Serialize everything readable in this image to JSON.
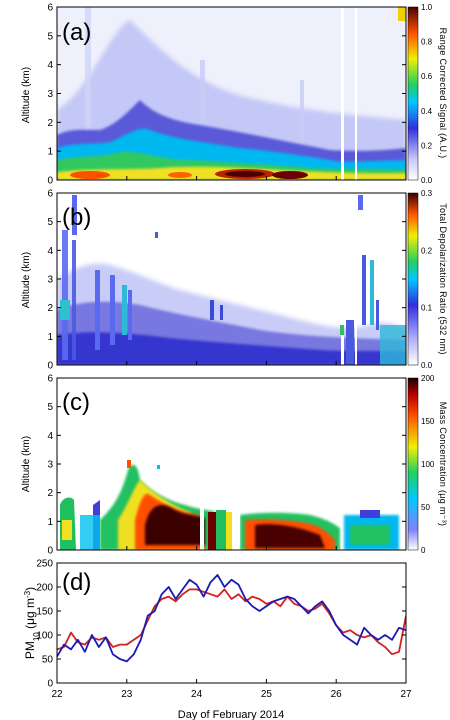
{
  "chart_data": [
    {
      "panel": "(a)",
      "type": "heatmap",
      "ylabel": "Altitude (km)",
      "ylim": [
        0,
        6
      ],
      "yticks": [
        "0",
        "1",
        "2",
        "3",
        "4",
        "5",
        "6"
      ],
      "colorbar": {
        "label": "Range Corrected Signal (A.U.)",
        "ticks": [
          "0.0",
          "0.2",
          "0.4",
          "0.6",
          "0.8",
          "1.0"
        ],
        "range": [
          0,
          1
        ]
      }
    },
    {
      "panel": "(b)",
      "type": "heatmap",
      "ylabel": "Altitude (km)",
      "ylim": [
        0,
        6
      ],
      "yticks": [
        "0",
        "1",
        "2",
        "3",
        "4",
        "5",
        "6"
      ],
      "colorbar": {
        "label": "Total Depolarization Ratio (532 nm)",
        "ticks": [
          "0.0",
          "0.1",
          "0.2",
          "0.3"
        ],
        "range": [
          0,
          0.3
        ]
      }
    },
    {
      "panel": "(c)",
      "type": "heatmap",
      "ylabel": "Altitude (km)",
      "ylim": [
        0,
        6
      ],
      "yticks": [
        "0",
        "1",
        "2",
        "3",
        "4",
        "5",
        "6"
      ],
      "colorbar": {
        "label": "Mass Concentration (μg m⁻³)",
        "ticks": [
          "0",
          "50",
          "100",
          "150",
          "200"
        ],
        "range": [
          0,
          200
        ]
      }
    },
    {
      "panel": "(d)",
      "type": "line",
      "ylabel": "PM10 (μg m⁻³)",
      "ylabel_main": "PM",
      "ylabel_sub": "10",
      "ylabel_rest": " (μg m",
      "ylabel_sup": "-3",
      "ylabel_end": ")",
      "ylim": [
        0,
        250
      ],
      "yticks": [
        "0",
        "50",
        "100",
        "150",
        "200",
        "250"
      ],
      "xlim": [
        22,
        27
      ],
      "xticks": [
        "22",
        "23",
        "24",
        "25",
        "26",
        "27"
      ],
      "xlabel": "Day of February 2014",
      "series": [
        {
          "color": "#d42020",
          "x": [
            22.0,
            22.1,
            22.2,
            22.3,
            22.4,
            22.5,
            22.6,
            22.7,
            22.8,
            22.9,
            23.0,
            23.1,
            23.2,
            23.3,
            23.4,
            23.5,
            23.6,
            23.7,
            23.8,
            23.9,
            24.0,
            24.1,
            24.2,
            24.3,
            24.4,
            24.5,
            24.6,
            24.7,
            24.8,
            24.9,
            25.0,
            25.1,
            25.2,
            25.3,
            25.4,
            25.5,
            25.6,
            25.7,
            25.8,
            25.9,
            26.0,
            26.1,
            26.2,
            26.3,
            26.4,
            26.5,
            26.6,
            26.7,
            26.8,
            26.9,
            27.0
          ],
          "y": [
            70,
            75,
            105,
            85,
            80,
            95,
            90,
            95,
            75,
            80,
            80,
            90,
            100,
            130,
            160,
            175,
            180,
            170,
            185,
            195,
            195,
            190,
            185,
            180,
            195,
            175,
            185,
            170,
            180,
            175,
            165,
            170,
            160,
            180,
            165,
            160,
            150,
            155,
            165,
            145,
            120,
            105,
            110,
            100,
            95,
            100,
            85,
            75,
            60,
            65,
            140
          ]
        },
        {
          "color": "#1a1ab4",
          "x": [
            22.0,
            22.1,
            22.2,
            22.3,
            22.4,
            22.5,
            22.6,
            22.7,
            22.8,
            22.9,
            23.0,
            23.1,
            23.2,
            23.3,
            23.4,
            23.5,
            23.6,
            23.7,
            23.8,
            23.9,
            24.0,
            24.1,
            24.2,
            24.3,
            24.4,
            24.5,
            24.6,
            24.7,
            24.8,
            24.9,
            25.0,
            25.1,
            25.2,
            25.3,
            25.4,
            25.5,
            25.6,
            25.7,
            25.8,
            25.9,
            26.0,
            26.1,
            26.2,
            26.3,
            26.4,
            26.5,
            26.6,
            26.7,
            26.8,
            26.9,
            27.0
          ],
          "y": [
            55,
            80,
            70,
            90,
            65,
            100,
            75,
            95,
            60,
            50,
            45,
            60,
            90,
            140,
            150,
            185,
            200,
            175,
            195,
            215,
            205,
            180,
            210,
            225,
            200,
            215,
            205,
            175,
            160,
            150,
            160,
            170,
            175,
            180,
            175,
            160,
            145,
            160,
            170,
            150,
            120,
            100,
            90,
            80,
            115,
            100,
            90,
            100,
            90,
            115,
            110
          ]
        }
      ]
    }
  ],
  "panel_labels": {
    "a": "(a)",
    "b": "(b)",
    "c": "(c)",
    "d": "(d)"
  },
  "xlabel": "Day of February 2014"
}
